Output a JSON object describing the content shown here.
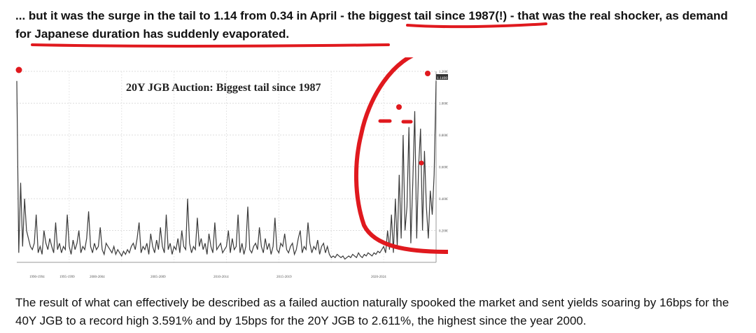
{
  "article": {
    "intro_part1": "... but it was the surge in the tail to 1.14 from 0.34 in April - the ",
    "intro_highlight1": "biggest tail since 1987",
    "intro_part2": "(!) - that was the real shocker, as ",
    "intro_highlight2": "demand for Japanese duration has suddenly evaporated",
    "intro_part3": ".",
    "closing": "The result of what can effectively be described as a failed auction naturally spooked the market and sent yields soaring by 16bps for the 40Y JGB to a record high 3.591% and by 15bps for the 20Y JGB to 2.611%, the highest since the year 2000."
  },
  "colors": {
    "annotation": "#e0191e",
    "line": "#3a3a3a",
    "last_value_tag": "#333333"
  },
  "chart_data": {
    "type": "line",
    "title": "20Y JGB Auction: Biggest tail since 1987",
    "xlabel": "",
    "ylabel": "",
    "ylim": [
      0,
      1.2
    ],
    "y_ticks": [
      "0.2000",
      "0.4000",
      "0.6000",
      "0.8000",
      "1.0000",
      "1.2000"
    ],
    "x_ticks": [
      "1990-1994",
      "1995-1999",
      "2000-2004",
      "2005-2009",
      "2010-2014",
      "2015-2019",
      "2020-2024"
    ],
    "last_value_label": "1.1400",
    "series": [
      {
        "values": [
          1.14,
          0.06,
          0.5,
          0.1,
          0.4,
          0.2,
          0.15,
          0.1,
          0.08,
          0.12,
          0.3,
          0.06,
          0.1,
          0.05,
          0.2,
          0.12,
          0.08,
          0.15,
          0.1,
          0.06,
          0.25,
          0.08,
          0.12,
          0.06,
          0.1,
          0.08,
          0.3,
          0.1,
          0.05,
          0.14,
          0.08,
          0.12,
          0.2,
          0.06,
          0.1,
          0.08,
          0.15,
          0.32,
          0.1,
          0.06,
          0.12,
          0.08,
          0.1,
          0.22,
          0.08,
          0.05,
          0.12,
          0.1,
          0.08,
          0.06,
          0.1,
          0.05,
          0.08,
          0.06,
          0.04,
          0.07,
          0.05,
          0.08,
          0.06,
          0.1,
          0.12,
          0.08,
          0.15,
          0.25,
          0.06,
          0.1,
          0.08,
          0.12,
          0.05,
          0.18,
          0.1,
          0.06,
          0.14,
          0.08,
          0.22,
          0.1,
          0.06,
          0.3,
          0.08,
          0.12,
          0.05,
          0.1,
          0.08,
          0.15,
          0.06,
          0.2,
          0.1,
          0.08,
          0.4,
          0.12,
          0.06,
          0.1,
          0.08,
          0.28,
          0.1,
          0.15,
          0.08,
          0.12,
          0.05,
          0.18,
          0.1,
          0.06,
          0.25,
          0.08,
          0.1,
          0.12,
          0.06,
          0.08,
          0.1,
          0.2,
          0.06,
          0.15,
          0.08,
          0.1,
          0.3,
          0.06,
          0.12,
          0.05,
          0.1,
          0.35,
          0.08,
          0.06,
          0.1,
          0.12,
          0.08,
          0.22,
          0.1,
          0.06,
          0.15,
          0.08,
          0.12,
          0.05,
          0.1,
          0.28,
          0.08,
          0.06,
          0.12,
          0.1,
          0.18,
          0.08,
          0.06,
          0.1,
          0.12,
          0.05,
          0.08,
          0.15,
          0.2,
          0.06,
          0.1,
          0.08,
          0.25,
          0.12,
          0.06,
          0.1,
          0.08,
          0.14,
          0.05,
          0.1,
          0.12,
          0.06,
          0.1,
          0.05,
          0.03,
          0.04,
          0.03,
          0.05,
          0.04,
          0.03,
          0.04,
          0.02,
          0.03,
          0.04,
          0.03,
          0.05,
          0.04,
          0.03,
          0.06,
          0.04,
          0.03,
          0.05,
          0.04,
          0.06,
          0.05,
          0.04,
          0.06,
          0.05,
          0.07,
          0.06,
          0.08,
          0.1,
          0.06,
          0.2,
          0.08,
          0.3,
          0.06,
          0.4,
          0.1,
          0.55,
          0.15,
          0.8,
          0.2,
          0.35,
          0.85,
          0.12,
          0.5,
          0.95,
          0.15,
          0.6,
          0.84,
          0.2,
          0.7,
          0.35,
          0.15,
          0.45,
          0.3,
          0.55,
          1.14
        ]
      }
    ]
  }
}
